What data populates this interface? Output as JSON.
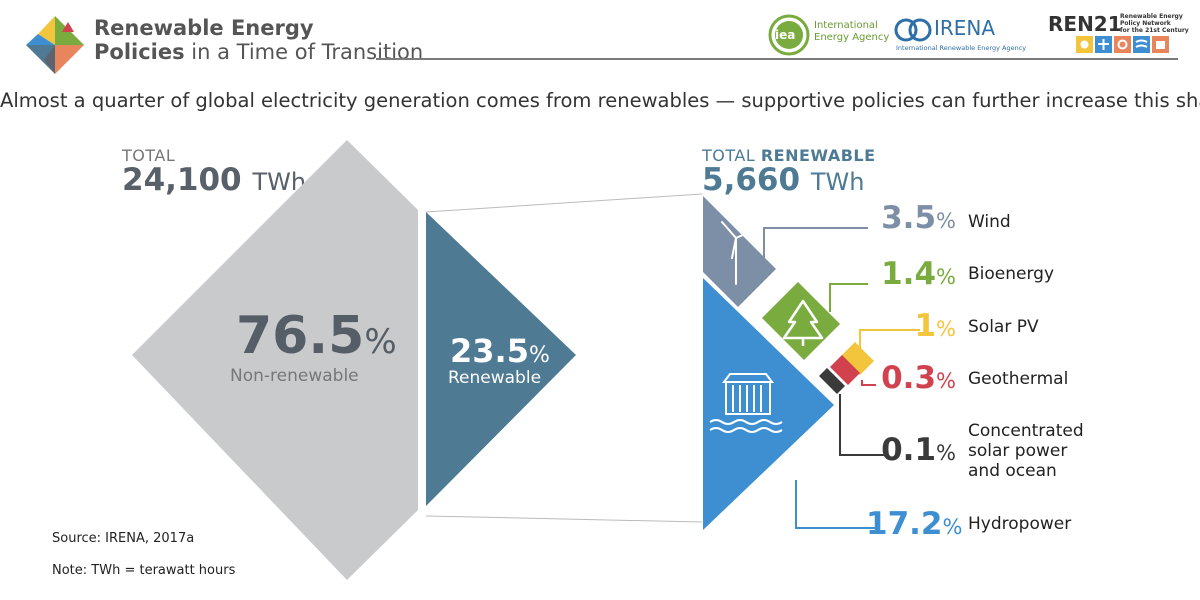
{
  "header": {
    "title_line1": "Renewable Energy",
    "title_line2_bold": "Policies",
    "title_line2_rest": " in a Time of Transition",
    "logos": {
      "iea_mark": "iea",
      "iea_name_1": "International",
      "iea_name_2": "Energy Agency",
      "irena_name": "IRENA",
      "irena_sub": "International Renewable Energy Agency",
      "ren21_name": "REN21",
      "ren21_sub_1": "Renewable Energy",
      "ren21_sub_2": "Policy Network",
      "ren21_sub_3": "for the 21st Century"
    }
  },
  "tagline": "Almost a quarter of global electricity generation comes from renewables — supportive policies can further increase this share.",
  "chart_data": {
    "type": "pie",
    "total": {
      "label": "TOTAL",
      "value": "24,100",
      "unit": "TWh"
    },
    "total_renewable": {
      "label_plain": "TOTAL ",
      "label_bold": "RENEWABLE",
      "value": "5,660",
      "unit": "TWh"
    },
    "split": [
      {
        "name": "Non-renewable",
        "value": 76.5,
        "color": "#c9cacc"
      },
      {
        "name": "Renewable",
        "value": 23.5,
        "color": "#4e7a94"
      }
    ],
    "renewables": [
      {
        "name": "Wind",
        "value": 3.5,
        "display": "3.5",
        "color": "#7d8fa6",
        "icon": "wind-turbine-icon"
      },
      {
        "name": "Bioenergy",
        "value": 1.4,
        "display": "1.4",
        "color": "#7aab3e",
        "icon": "tree-icon"
      },
      {
        "name": "Solar PV",
        "value": 1,
        "display": "1",
        "color": "#f2c53d"
      },
      {
        "name": "Geothermal",
        "value": 0.3,
        "display": "0.3",
        "color": "#d2414e"
      },
      {
        "name": "Concentrated solar power and ocean",
        "label_lines": [
          "Concentrated",
          "solar power",
          "and ocean"
        ],
        "value": 0.1,
        "display": "0.1",
        "color": "#3a3a3a"
      },
      {
        "name": "Hydropower",
        "value": 17.2,
        "display": "17.2",
        "color": "#3d8fd1",
        "icon": "dam-icon"
      }
    ],
    "percent_sign": "%"
  },
  "source": "Source: IRENA, 2017a",
  "note": "Note: TWh = terawatt hours"
}
